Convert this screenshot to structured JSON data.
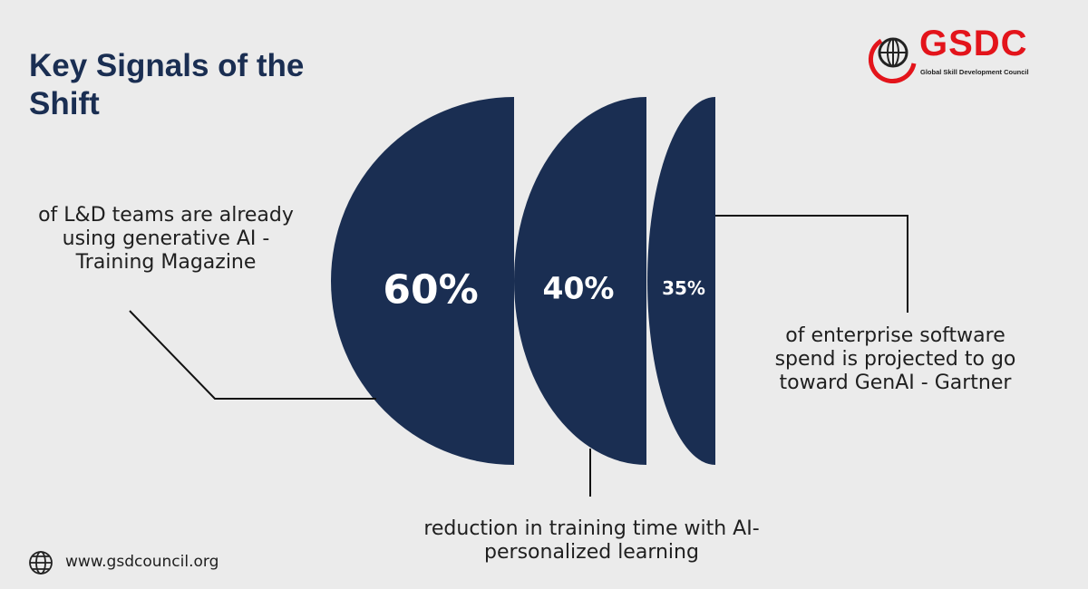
{
  "header": {
    "title": "Key Signals of the Shift"
  },
  "logo": {
    "name": "GSDC",
    "tagline": "Global Skill Development Council"
  },
  "stats": [
    {
      "figure": "60%",
      "description": "of L&D teams are already using generative AI - Training Magazine"
    },
    {
      "figure": "40%",
      "description": "reduction in training time with AI-personalized learning"
    },
    {
      "figure": "35%",
      "description": "of enterprise software spend is projected to go toward GenAI - Gartner"
    }
  ],
  "footer": {
    "website": "www.gsdcouncil.org"
  }
}
